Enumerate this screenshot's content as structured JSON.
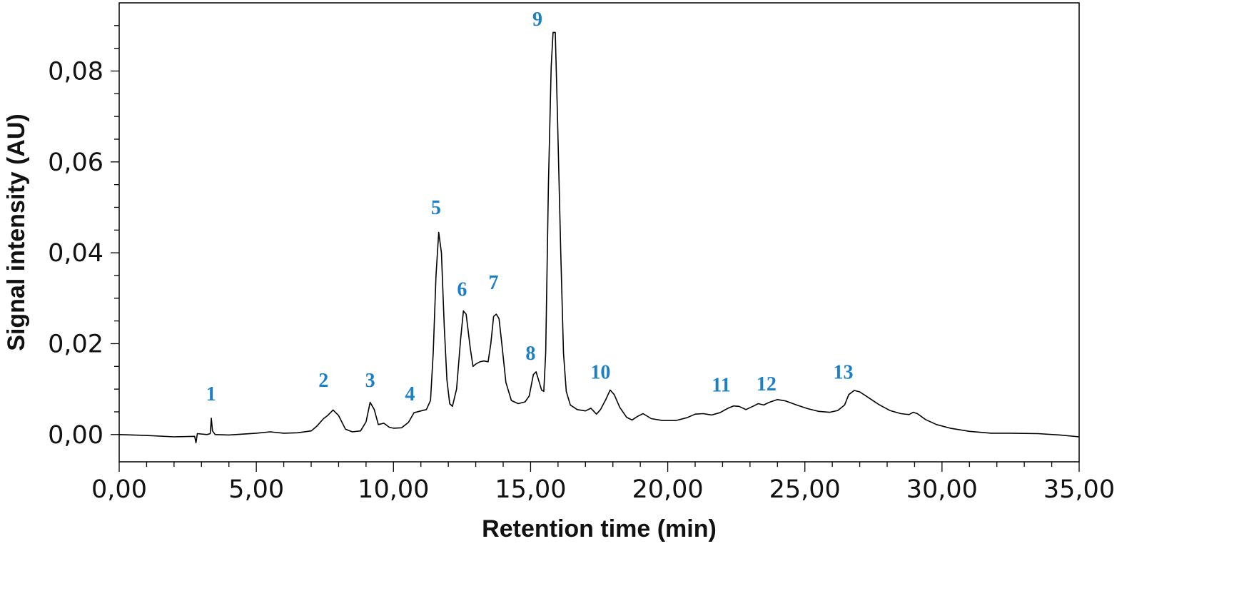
{
  "chart_data": {
    "type": "line",
    "xlabel": "Retention time (min)",
    "ylabel": "Signal intensity (AU)",
    "xlim": [
      0,
      35
    ],
    "ylim": [
      -0.006,
      0.095
    ],
    "grid": false,
    "x_ticks": [
      {
        "value": 0,
        "label": "0,00"
      },
      {
        "value": 5,
        "label": "5,00"
      },
      {
        "value": 10,
        "label": "10,00"
      },
      {
        "value": 15,
        "label": "15,00"
      },
      {
        "value": 20,
        "label": "20,00"
      },
      {
        "value": 25,
        "label": "25,00"
      },
      {
        "value": 30,
        "label": "30,00"
      },
      {
        "value": 35,
        "label": "35,00"
      }
    ],
    "y_ticks": [
      {
        "value": 0,
        "label": "0,00"
      },
      {
        "value": 0.02,
        "label": "0,02"
      },
      {
        "value": 0.04,
        "label": "0,04"
      },
      {
        "value": 0.06,
        "label": "0,06"
      },
      {
        "value": 0.08,
        "label": "0,08"
      }
    ],
    "series": [
      {
        "color": "#000000",
        "points": [
          [
            0.0,
            0.0
          ],
          [
            1.0,
            -0.0002
          ],
          [
            2.0,
            -0.0005
          ],
          [
            2.75,
            -0.0004
          ],
          [
            2.8,
            -0.0018
          ],
          [
            2.85,
            0.0002
          ],
          [
            3.2,
            0.0
          ],
          [
            3.32,
            0.0002
          ],
          [
            3.36,
            0.0036
          ],
          [
            3.4,
            0.0008
          ],
          [
            3.5,
            0.0
          ],
          [
            4.0,
            -0.0001
          ],
          [
            4.5,
            0.0001
          ],
          [
            5.0,
            0.0003
          ],
          [
            5.5,
            0.0006
          ],
          [
            6.0,
            0.0003
          ],
          [
            6.5,
            0.0004
          ],
          [
            7.0,
            0.0008
          ],
          [
            7.2,
            0.0018
          ],
          [
            7.45,
            0.0035
          ],
          [
            7.6,
            0.0042
          ],
          [
            7.8,
            0.0054
          ],
          [
            8.0,
            0.0042
          ],
          [
            8.25,
            0.0012
          ],
          [
            8.5,
            0.0006
          ],
          [
            8.8,
            0.0008
          ],
          [
            9.0,
            0.0028
          ],
          [
            9.15,
            0.0071
          ],
          [
            9.3,
            0.0055
          ],
          [
            9.45,
            0.0022
          ],
          [
            9.65,
            0.0025
          ],
          [
            9.85,
            0.0016
          ],
          [
            10.0,
            0.0014
          ],
          [
            10.3,
            0.0015
          ],
          [
            10.55,
            0.0027
          ],
          [
            10.75,
            0.0048
          ],
          [
            11.0,
            0.0052
          ],
          [
            11.2,
            0.0055
          ],
          [
            11.35,
            0.0075
          ],
          [
            11.45,
            0.018
          ],
          [
            11.55,
            0.035
          ],
          [
            11.65,
            0.0445
          ],
          [
            11.75,
            0.04
          ],
          [
            11.85,
            0.024
          ],
          [
            11.95,
            0.012
          ],
          [
            12.05,
            0.0068
          ],
          [
            12.15,
            0.0062
          ],
          [
            12.3,
            0.01
          ],
          [
            12.45,
            0.021
          ],
          [
            12.55,
            0.0272
          ],
          [
            12.65,
            0.0265
          ],
          [
            12.8,
            0.019
          ],
          [
            12.9,
            0.015
          ],
          [
            13.0,
            0.0155
          ],
          [
            13.15,
            0.016
          ],
          [
            13.3,
            0.0162
          ],
          [
            13.45,
            0.016
          ],
          [
            13.55,
            0.02
          ],
          [
            13.65,
            0.026
          ],
          [
            13.75,
            0.0265
          ],
          [
            13.85,
            0.0255
          ],
          [
            13.95,
            0.02
          ],
          [
            14.1,
            0.0115
          ],
          [
            14.3,
            0.0075
          ],
          [
            14.55,
            0.0068
          ],
          [
            14.8,
            0.0072
          ],
          [
            14.95,
            0.0085
          ],
          [
            15.1,
            0.0132
          ],
          [
            15.2,
            0.0138
          ],
          [
            15.3,
            0.0118
          ],
          [
            15.4,
            0.0098
          ],
          [
            15.48,
            0.0095
          ],
          [
            15.55,
            0.018
          ],
          [
            15.65,
            0.055
          ],
          [
            15.75,
            0.081
          ],
          [
            15.82,
            0.0885
          ],
          [
            15.9,
            0.0885
          ],
          [
            15.98,
            0.07
          ],
          [
            16.1,
            0.04
          ],
          [
            16.2,
            0.018
          ],
          [
            16.3,
            0.0095
          ],
          [
            16.45,
            0.0065
          ],
          [
            16.7,
            0.0055
          ],
          [
            17.0,
            0.0052
          ],
          [
            17.2,
            0.0058
          ],
          [
            17.4,
            0.0045
          ],
          [
            17.55,
            0.0055
          ],
          [
            17.75,
            0.0078
          ],
          [
            17.9,
            0.0098
          ],
          [
            18.05,
            0.0088
          ],
          [
            18.25,
            0.006
          ],
          [
            18.5,
            0.0038
          ],
          [
            18.7,
            0.0032
          ],
          [
            18.9,
            0.004
          ],
          [
            19.1,
            0.0046
          ],
          [
            19.4,
            0.0035
          ],
          [
            19.8,
            0.0031
          ],
          [
            20.3,
            0.0031
          ],
          [
            20.7,
            0.0037
          ],
          [
            21.0,
            0.0045
          ],
          [
            21.3,
            0.0046
          ],
          [
            21.6,
            0.0043
          ],
          [
            21.9,
            0.0048
          ],
          [
            22.2,
            0.0058
          ],
          [
            22.4,
            0.0063
          ],
          [
            22.6,
            0.0062
          ],
          [
            22.85,
            0.0055
          ],
          [
            23.1,
            0.0062
          ],
          [
            23.3,
            0.0068
          ],
          [
            23.5,
            0.0065
          ],
          [
            23.7,
            0.0071
          ],
          [
            24.0,
            0.0077
          ],
          [
            24.3,
            0.0074
          ],
          [
            24.7,
            0.0065
          ],
          [
            25.1,
            0.0057
          ],
          [
            25.5,
            0.0051
          ],
          [
            25.9,
            0.0049
          ],
          [
            26.2,
            0.0053
          ],
          [
            26.45,
            0.0065
          ],
          [
            26.6,
            0.0088
          ],
          [
            26.8,
            0.0097
          ],
          [
            27.0,
            0.0094
          ],
          [
            27.3,
            0.0082
          ],
          [
            27.7,
            0.0066
          ],
          [
            28.1,
            0.0053
          ],
          [
            28.5,
            0.0046
          ],
          [
            28.8,
            0.0044
          ],
          [
            28.95,
            0.0049
          ],
          [
            29.1,
            0.0046
          ],
          [
            29.4,
            0.0033
          ],
          [
            29.8,
            0.0022
          ],
          [
            30.3,
            0.0014
          ],
          [
            31.0,
            0.0007
          ],
          [
            31.8,
            0.0003
          ],
          [
            32.5,
            0.0003
          ],
          [
            33.5,
            0.0002
          ],
          [
            34.3,
            -0.0001
          ],
          [
            35.0,
            -0.0005
          ]
        ]
      }
    ],
    "annotations": [
      {
        "text": "1",
        "x": 3.35,
        "y": 0.0075,
        "color": "#1f7fc4"
      },
      {
        "text": "2",
        "x": 7.45,
        "y": 0.0105,
        "color": "#1f7fc4"
      },
      {
        "text": "3",
        "x": 9.15,
        "y": 0.0105,
        "color": "#1f7fc4"
      },
      {
        "text": "4",
        "x": 10.6,
        "y": 0.0075,
        "color": "#1f7fc4"
      },
      {
        "text": "5",
        "x": 11.55,
        "y": 0.0485,
        "color": "#1f7fc4"
      },
      {
        "text": "6",
        "x": 12.5,
        "y": 0.0305,
        "color": "#1f7fc4"
      },
      {
        "text": "7",
        "x": 13.65,
        "y": 0.032,
        "color": "#1f7fc4"
      },
      {
        "text": "8",
        "x": 15.0,
        "y": 0.0165,
        "color": "#1f7fc4"
      },
      {
        "text": "9",
        "x": 15.25,
        "y": 0.09,
        "color": "#1f7fc4"
      },
      {
        "text": "10",
        "x": 17.55,
        "y": 0.0123,
        "color": "#1f7fc4"
      },
      {
        "text": "11",
        "x": 21.95,
        "y": 0.0095,
        "color": "#1f7fc4"
      },
      {
        "text": "12",
        "x": 23.6,
        "y": 0.0097,
        "color": "#1f7fc4"
      },
      {
        "text": "13",
        "x": 26.4,
        "y": 0.0123,
        "color": "#1f7fc4"
      }
    ]
  }
}
